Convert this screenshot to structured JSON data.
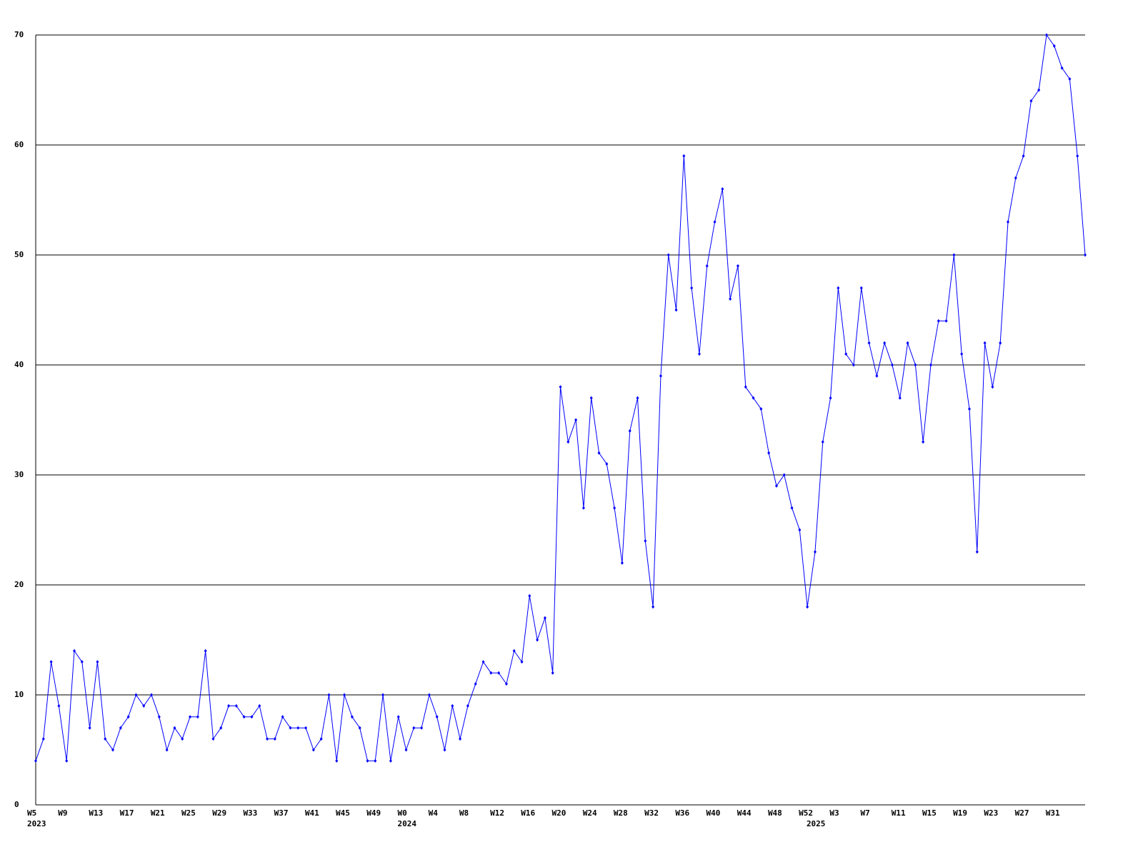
{
  "chart_data": {
    "type": "line",
    "categories": [
      "W5",
      null,
      null,
      null,
      "W9",
      null,
      null,
      null,
      "W13",
      null,
      null,
      null,
      "W17",
      null,
      null,
      null,
      "W21",
      null,
      null,
      null,
      "W25",
      null,
      null,
      null,
      "W29",
      null,
      null,
      null,
      "W33",
      null,
      null,
      null,
      "W37",
      null,
      null,
      null,
      "W41",
      null,
      null,
      null,
      "W45",
      null,
      null,
      null,
      "W49",
      null,
      null,
      null,
      "W0",
      null,
      null,
      null,
      "W4",
      null,
      null,
      null,
      "W8",
      null,
      null,
      null,
      "W12",
      null,
      null,
      null,
      "W16",
      null,
      null,
      null,
      "W20",
      null,
      null,
      null,
      "W24",
      null,
      null,
      null,
      "W28",
      null,
      null,
      null,
      "W32",
      null,
      null,
      null,
      "W36",
      null,
      null,
      null,
      "W40",
      null,
      null,
      null,
      "W44",
      null,
      null,
      null,
      "W48",
      null,
      null,
      null,
      "W52",
      null,
      null,
      null,
      "W3",
      null,
      null,
      null,
      "W7",
      null,
      null,
      null,
      "W11",
      null,
      null,
      null,
      "W15",
      null,
      null,
      null,
      "W19",
      null,
      null,
      null,
      "W23",
      null,
      null,
      null,
      "W27",
      null,
      null,
      null,
      "W31",
      null,
      null,
      null,
      null
    ],
    "category_years": [
      "2023",
      null,
      null,
      null,
      null,
      null,
      null,
      null,
      null,
      null,
      null,
      null,
      null,
      null,
      null,
      null,
      null,
      null,
      null,
      null,
      null,
      null,
      null,
      null,
      null,
      null,
      null,
      null,
      null,
      null,
      null,
      null,
      null,
      null,
      null,
      null,
      null,
      null,
      null,
      null,
      null,
      null,
      null,
      null,
      null,
      null,
      null,
      null,
      "2024",
      null,
      null,
      null,
      null,
      null,
      null,
      null,
      null,
      null,
      null,
      null,
      null,
      null,
      null,
      null,
      null,
      null,
      null,
      null,
      null,
      null,
      null,
      null,
      null,
      null,
      null,
      null,
      null,
      null,
      null,
      null,
      null,
      null,
      null,
      null,
      null,
      null,
      null,
      null,
      null,
      null,
      null,
      null,
      null,
      null,
      null,
      null,
      null,
      null,
      null,
      null,
      null,
      "2025",
      null,
      null,
      null,
      null,
      null,
      null,
      null,
      null,
      null,
      null,
      null,
      null,
      null,
      null,
      null,
      null,
      null,
      null,
      null,
      null,
      null,
      null,
      null,
      null,
      null,
      null,
      null,
      null,
      null,
      null,
      null,
      null,
      null,
      null,
      null
    ],
    "values": [
      4,
      6,
      13,
      9,
      4,
      14,
      13,
      7,
      13,
      6,
      5,
      7,
      8,
      10,
      9,
      10,
      8,
      5,
      7,
      6,
      8,
      8,
      14,
      6,
      7,
      9,
      9,
      8,
      8,
      9,
      6,
      6,
      8,
      7,
      7,
      7,
      5,
      6,
      10,
      4,
      10,
      8,
      7,
      4,
      4,
      10,
      4,
      8,
      5,
      7,
      7,
      10,
      8,
      5,
      9,
      6,
      9,
      11,
      13,
      12,
      12,
      11,
      14,
      13,
      19,
      15,
      17,
      12,
      38,
      33,
      35,
      27,
      37,
      32,
      31,
      27,
      22,
      34,
      37,
      24,
      18,
      39,
      50,
      45,
      59,
      47,
      41,
      49,
      53,
      56,
      46,
      49,
      38,
      37,
      36,
      32,
      29,
      30,
      27,
      25,
      18,
      23,
      33,
      37,
      47,
      41,
      40,
      47,
      42,
      39,
      42,
      40,
      37,
      42,
      40,
      33,
      40,
      44,
      44,
      50,
      41,
      36,
      23,
      42,
      38,
      42,
      53,
      57,
      59,
      64,
      65,
      70,
      69,
      67,
      66,
      59,
      50
    ],
    "color": "#0000ff",
    "ylim": [
      0,
      70
    ],
    "yticks": [
      0,
      10,
      20,
      30,
      40,
      50,
      60,
      70
    ],
    "grid": true
  }
}
